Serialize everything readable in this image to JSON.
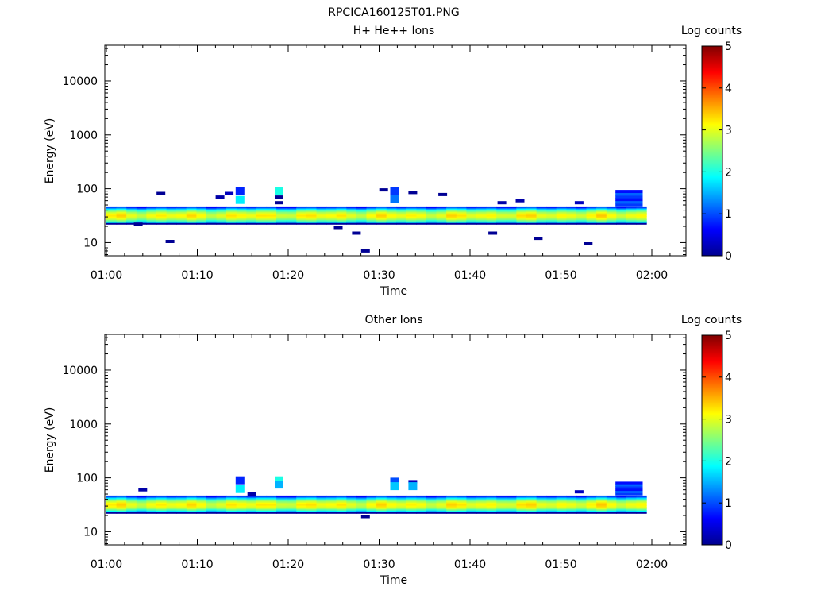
{
  "page_title": "RPCICA160125T01.PNG",
  "chart_data": [
    {
      "type": "heatmap",
      "title": "H+ He++ Ions",
      "xlabel": "Time",
      "ylabel": "Energy (eV)",
      "y_scale": "log",
      "ylim": [
        5.7,
        46000
      ],
      "x_ticks": [
        "01:00",
        "01:10",
        "01:20",
        "01:30",
        "01:40",
        "01:50",
        "02:00"
      ],
      "y_ticks": [
        "10",
        "100",
        "1000",
        "10000"
      ],
      "colorbar": {
        "label": "Log counts",
        "range": [
          0,
          5
        ],
        "ticks": [
          "0",
          "1",
          "2",
          "3",
          "4",
          "5"
        ]
      },
      "band": {
        "time_start": "01:00",
        "time_end": "01:59",
        "energy_range_eV": [
          22,
          47
        ],
        "peak_energy_eV": 32,
        "peak_log_counts": 3.1
      },
      "spot_cells": [
        {
          "time": "01:03.5",
          "energy_eV": 22,
          "log_counts": 0.1
        },
        {
          "time": "01:06",
          "energy_eV": 82,
          "log_counts": 0.1
        },
        {
          "time": "01:07",
          "energy_eV": 10.5,
          "log_counts": 0.1
        },
        {
          "time": "01:12.5",
          "energy_eV": 70,
          "log_counts": 0.2
        },
        {
          "time": "01:13.5",
          "energy_eV": 82,
          "log_counts": 0.3
        },
        {
          "time": "01:14.7",
          "energy_eV": 90,
          "log_counts": 0.8
        },
        {
          "time": "01:14.7",
          "energy_eV": 62,
          "log_counts": 1.8
        },
        {
          "time": "01:19",
          "energy_eV": 90,
          "log_counts": 2.0
        },
        {
          "time": "01:19",
          "energy_eV": 70,
          "log_counts": 0.1
        },
        {
          "time": "01:19",
          "energy_eV": 55,
          "log_counts": 0.1
        },
        {
          "time": "01:25.5",
          "energy_eV": 19,
          "log_counts": 0.1
        },
        {
          "time": "01:27.5",
          "energy_eV": 15,
          "log_counts": 0.1
        },
        {
          "time": "01:28.5",
          "energy_eV": 7,
          "log_counts": 0.1
        },
        {
          "time": "01:30.5",
          "energy_eV": 95,
          "log_counts": 0.1
        },
        {
          "time": "01:31.7",
          "energy_eV": 90,
          "log_counts": 0.9
        },
        {
          "time": "01:31.7",
          "energy_eV": 65,
          "log_counts": 1.2
        },
        {
          "time": "01:33.7",
          "energy_eV": 85,
          "log_counts": 0.1
        },
        {
          "time": "01:37",
          "energy_eV": 78,
          "log_counts": 0.1
        },
        {
          "time": "01:42.5",
          "energy_eV": 15,
          "log_counts": 0.1
        },
        {
          "time": "01:43.5",
          "energy_eV": 55,
          "log_counts": 0.2
        },
        {
          "time": "01:45.5",
          "energy_eV": 60,
          "log_counts": 0.2
        },
        {
          "time": "01:47.5",
          "energy_eV": 12,
          "log_counts": 0.1
        },
        {
          "time": "01:52",
          "energy_eV": 55,
          "log_counts": 0.3
        },
        {
          "time": "01:53",
          "energy_eV": 9.5,
          "log_counts": 0.1
        },
        {
          "time": "01:57.5",
          "energy_eV": 70,
          "log_counts": 0.9
        }
      ]
    },
    {
      "type": "heatmap",
      "title": "Other Ions",
      "xlabel": "Time",
      "ylabel": "Energy (eV)",
      "y_scale": "log",
      "ylim": [
        5.7,
        46000
      ],
      "x_ticks": [
        "01:00",
        "01:10",
        "01:20",
        "01:30",
        "01:40",
        "01:50",
        "02:00"
      ],
      "y_ticks": [
        "10",
        "100",
        "1000",
        "10000"
      ],
      "colorbar": {
        "label": "Log counts",
        "range": [
          0,
          5
        ],
        "ticks": [
          "0",
          "1",
          "2",
          "3",
          "4",
          "5"
        ]
      },
      "band": {
        "time_start": "01:00",
        "time_end": "01:59",
        "energy_range_eV": [
          22,
          47
        ],
        "peak_energy_eV": 32,
        "peak_log_counts": 3.1
      },
      "spot_cells": [
        {
          "time": "01:04",
          "energy_eV": 60,
          "log_counts": 0.2
        },
        {
          "time": "01:14.7",
          "energy_eV": 90,
          "log_counts": 0.8
        },
        {
          "time": "01:14.7",
          "energy_eV": 62,
          "log_counts": 1.8
        },
        {
          "time": "01:16",
          "energy_eV": 50,
          "log_counts": 0.2
        },
        {
          "time": "01:19",
          "energy_eV": 90,
          "log_counts": 2.0
        },
        {
          "time": "01:19",
          "energy_eV": 75,
          "log_counts": 1.5
        },
        {
          "time": "01:28.5",
          "energy_eV": 19,
          "log_counts": 0.1
        },
        {
          "time": "01:31.7",
          "energy_eV": 85,
          "log_counts": 1.0
        },
        {
          "time": "01:31.7",
          "energy_eV": 70,
          "log_counts": 1.6
        },
        {
          "time": "01:33.7",
          "energy_eV": 85,
          "log_counts": 0.3
        },
        {
          "time": "01:33.7",
          "energy_eV": 70,
          "log_counts": 1.5
        },
        {
          "time": "01:52",
          "energy_eV": 55,
          "log_counts": 0.3
        },
        {
          "time": "01:57.5",
          "energy_eV": 70,
          "log_counts": 0.9
        }
      ]
    }
  ]
}
